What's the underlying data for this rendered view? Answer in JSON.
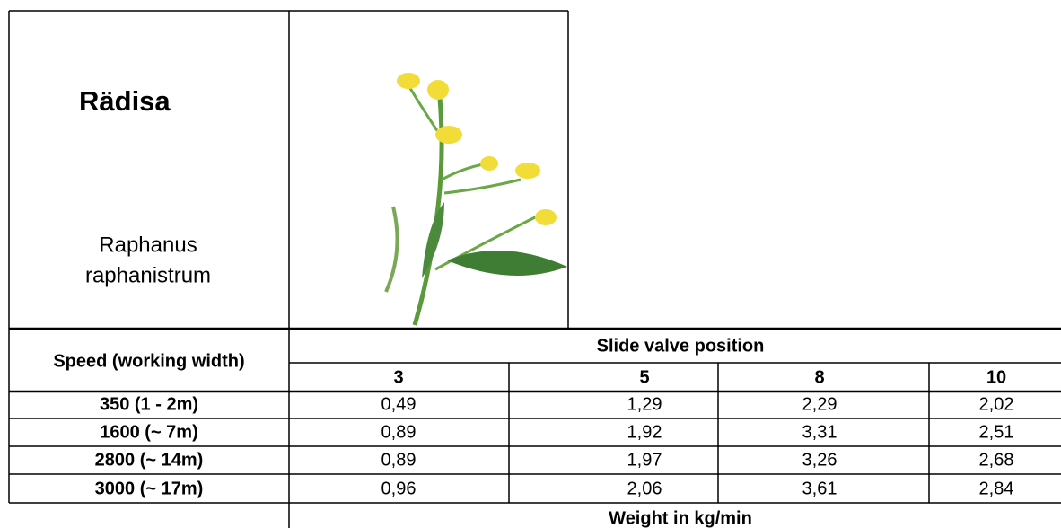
{
  "header": {
    "common_name": "Rädisa",
    "latin_name_line1": "Raphanus",
    "latin_name_line2": "raphanistrum"
  },
  "table": {
    "row_header": "Speed (working width)",
    "column_group": "Slide valve position",
    "columns": [
      "3",
      "5",
      "8",
      "10"
    ],
    "rows": [
      {
        "speed": "350 (1 - 2m)",
        "values": [
          "0,49",
          "1,29",
          "2,29",
          "2,02"
        ]
      },
      {
        "speed": "1600 (~ 7m)",
        "values": [
          "0,89",
          "1,92",
          "3,31",
          "2,51"
        ]
      },
      {
        "speed": "2800 (~ 14m)",
        "values": [
          "0,89",
          "1,97",
          "3,26",
          "2,68"
        ]
      },
      {
        "speed": "3000 (~ 17m)",
        "values": [
          "0,96",
          "2,06",
          "3,61",
          "2,84"
        ]
      }
    ],
    "footer": "Weight in kg/min"
  }
}
